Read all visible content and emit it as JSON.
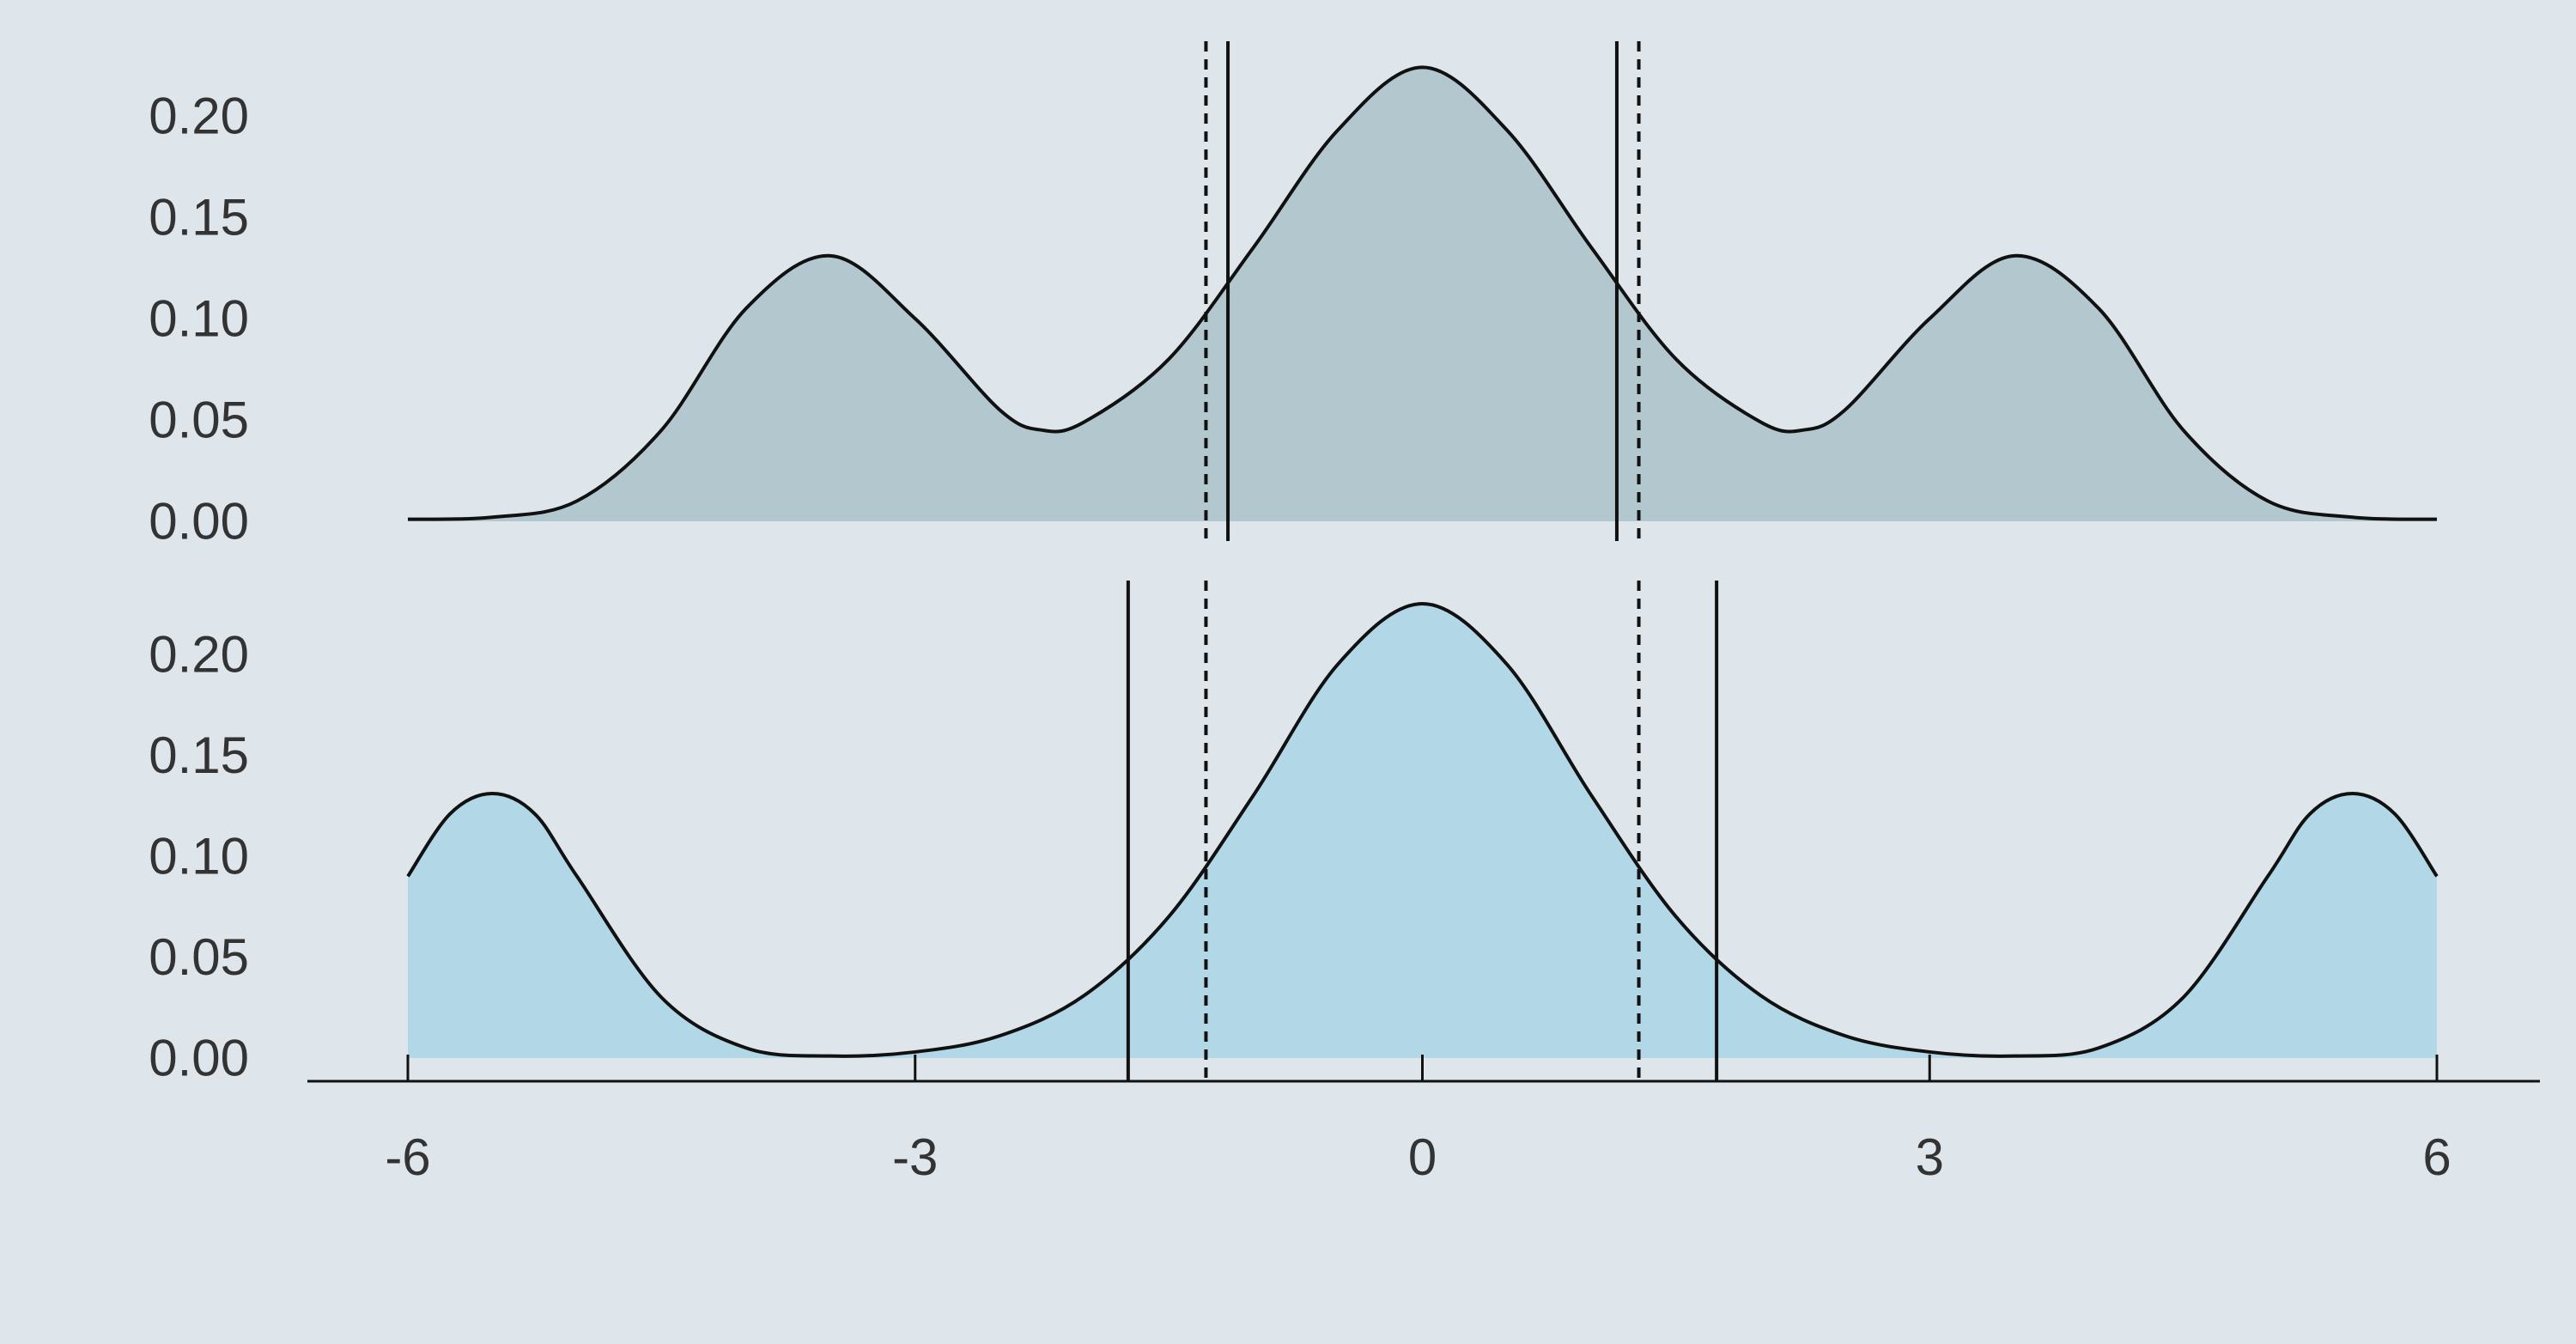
{
  "colors": {
    "background": "#dfe6eb",
    "panel_top_fill": "#b3c7cf",
    "panel_bottom_fill": "#b2d7e6",
    "curve_stroke": "#111111",
    "text": "#333333"
  },
  "chart_data": [
    {
      "type": "area",
      "panel": "top",
      "title": "",
      "xlabel": "",
      "ylabel": "",
      "xlim": [
        -6,
        6
      ],
      "ylim": [
        0,
        0.225
      ],
      "yticks": [
        0.0,
        0.05,
        0.1,
        0.15,
        0.2
      ],
      "ytick_labels": [
        "0.00",
        "0.05",
        "0.10",
        "0.15",
        "0.20"
      ],
      "grid": false,
      "series": [
        {
          "x": [
            -6,
            -5.5,
            -5,
            -4.5,
            -4,
            -3.5,
            -3,
            -2.5,
            -2.25,
            -2,
            -1.5,
            -1,
            -0.5,
            0,
            0.5,
            1,
            1.5,
            2,
            2.25,
            2.5,
            3,
            3.5,
            4,
            4.5,
            5,
            5.5,
            6
          ],
          "y": [
            0.001,
            0.002,
            0.01,
            0.045,
            0.105,
            0.131,
            0.1,
            0.055,
            0.045,
            0.049,
            0.08,
            0.135,
            0.193,
            0.224,
            0.193,
            0.135,
            0.08,
            0.049,
            0.045,
            0.055,
            0.1,
            0.131,
            0.105,
            0.045,
            0.01,
            0.002,
            0.001
          ]
        }
      ],
      "vlines": [
        {
          "x": -1.15,
          "style": "solid"
        },
        {
          "x": 1.15,
          "style": "solid"
        },
        {
          "x": -1.28,
          "style": "dashed"
        },
        {
          "x": 1.28,
          "style": "dashed"
        }
      ]
    },
    {
      "type": "area",
      "panel": "bottom",
      "title": "",
      "xlabel": "",
      "ylabel": "",
      "xlim": [
        -6,
        6
      ],
      "ylim": [
        0,
        0.225
      ],
      "yticks": [
        0.0,
        0.05,
        0.1,
        0.15,
        0.2
      ],
      "ytick_labels": [
        "0.00",
        "0.05",
        "0.10",
        "0.15",
        "0.20"
      ],
      "xticks": [
        -6,
        -3,
        0,
        3,
        6
      ],
      "xtick_labels": [
        "-6",
        "-3",
        "0",
        "3",
        "6"
      ],
      "grid": false,
      "series": [
        {
          "x": [
            -6,
            -5.75,
            -5.5,
            -5.25,
            -5,
            -4.5,
            -4,
            -3.5,
            -3,
            -2.5,
            -2,
            -1.5,
            -1,
            -0.5,
            0,
            0.5,
            1,
            1.5,
            2,
            2.5,
            3,
            3.5,
            4,
            4.5,
            5,
            5.25,
            5.5,
            5.75,
            6
          ],
          "y": [
            0.09,
            0.121,
            0.131,
            0.121,
            0.09,
            0.03,
            0.005,
            0.001,
            0.003,
            0.011,
            0.031,
            0.07,
            0.13,
            0.195,
            0.225,
            0.195,
            0.13,
            0.07,
            0.031,
            0.011,
            0.003,
            0.001,
            0.005,
            0.03,
            0.09,
            0.121,
            0.131,
            0.121,
            0.09
          ]
        }
      ],
      "vlines": [
        {
          "x": -1.74,
          "style": "solid"
        },
        {
          "x": 1.74,
          "style": "solid"
        },
        {
          "x": -1.28,
          "style": "dashed"
        },
        {
          "x": 1.28,
          "style": "dashed"
        }
      ]
    }
  ]
}
